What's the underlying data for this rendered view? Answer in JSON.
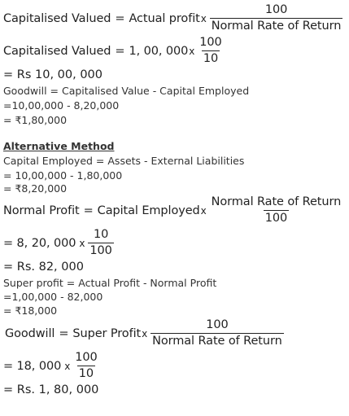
{
  "eq1": {
    "lhs": "Capitalised Valued",
    "eq": "=",
    "term": "Actual profit",
    "times": "x",
    "num": "100",
    "den": "Normal Rate of Return"
  },
  "eq2": {
    "lhs": "Capitalised Valued",
    "eq": "=",
    "term": "1, 00, 000",
    "times": "x",
    "num": "100",
    "den": "10"
  },
  "eq3": "= Rs 10, 00, 000",
  "goodwill_def": "Goodwill = Capitalised Value - Capital Employed",
  "goodwill_calc": "=10,00,000 - 8,20,000",
  "goodwill_res": "= ₹1,80,000",
  "alt_heading": "Alternative Method",
  "ce_def": "Capital Employed = Assets - External Liabilities",
  "ce_calc": "= 10,00,000 - 1,80,000",
  "ce_res": "= ₹8,20,000",
  "np": {
    "lhs": "Normal Profit",
    "eq": "=",
    "term": "Capital Employed",
    "times": "x",
    "num": "Normal Rate of Return",
    "den": "100"
  },
  "np2": {
    "lhs": "= 8, 20, 000",
    "times": "x",
    "num": "10",
    "den": "100"
  },
  "np3": "= Rs. 82, 000",
  "sp_def": "Super profit = Actual Profit - Normal Profit",
  "sp_calc": "=1,00,000 - 82,000",
  "sp_res": "= ₹18,000",
  "gw": {
    "lhs": "Goodwill",
    "eq": "=",
    "term": "Super Profit",
    "times": "x",
    "num": "100",
    "den": "Normal Rate of Return"
  },
  "gw2": {
    "lhs": "= 18, 000",
    "times": "x",
    "num": "100",
    "den": "10"
  },
  "gw3": "= Rs. 1, 80, 000"
}
